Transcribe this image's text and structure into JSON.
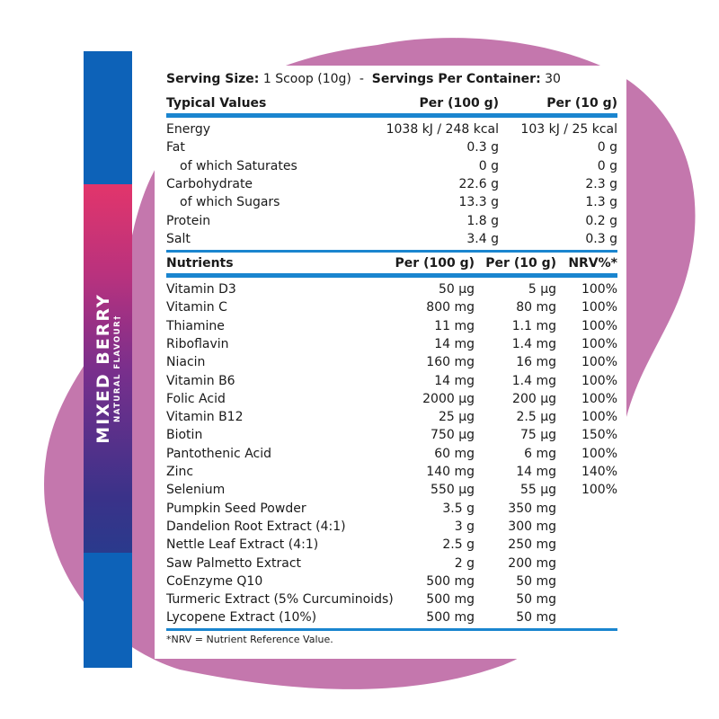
{
  "brand": {
    "flavour": "MIXED BERRY",
    "subtitle": "NATURAL FLAVOUR†"
  },
  "serving": {
    "size_label": "Serving Size:",
    "size_value": "1 Scoop (10g)",
    "sep": "-",
    "per_label": "Servings Per Container:",
    "per_value": "30"
  },
  "typical": {
    "headers": [
      "Typical Values",
      "Per (100 g)",
      "Per (10 g)"
    ],
    "rows": [
      [
        "Energy",
        "1038 kJ / 248 kcal",
        "103 kJ / 25 kcal"
      ],
      [
        "Fat",
        "0.3 g",
        "0 g"
      ],
      [
        "of which Saturates",
        "0 g",
        "0 g"
      ],
      [
        "Carbohydrate",
        "22.6 g",
        "2.3 g"
      ],
      [
        "of which Sugars",
        "13.3 g",
        "1.3 g"
      ],
      [
        "Protein",
        "1.8 g",
        "0.2 g"
      ],
      [
        "Salt",
        "3.4 g",
        "0.3 g"
      ]
    ]
  },
  "nutrients": {
    "headers": [
      "Nutrients",
      "Per (100 g)",
      "Per (10 g)",
      "NRV%*"
    ],
    "rows": [
      [
        "Vitamin D3",
        "50 µg",
        "5 µg",
        "100%"
      ],
      [
        "Vitamin C",
        "800 mg",
        "80 mg",
        "100%"
      ],
      [
        "Thiamine",
        "11 mg",
        "1.1 mg",
        "100%"
      ],
      [
        "Riboflavin",
        "14 mg",
        "1.4 mg",
        "100%"
      ],
      [
        "Niacin",
        "160 mg",
        "16 mg",
        "100%"
      ],
      [
        "Vitamin B6",
        "14 mg",
        "1.4 mg",
        "100%"
      ],
      [
        "Folic Acid",
        "2000 µg",
        "200 µg",
        "100%"
      ],
      [
        "Vitamin B12",
        "25 µg",
        "2.5 µg",
        "100%"
      ],
      [
        "Biotin",
        "750 µg",
        "75 µg",
        "150%"
      ],
      [
        "Pantothenic Acid",
        "60 mg",
        "6 mg",
        "100%"
      ],
      [
        "Zinc",
        "140 mg",
        "14 mg",
        "140%"
      ],
      [
        "Selenium",
        "550 µg",
        "55 µg",
        "100%"
      ],
      [
        "Pumpkin Seed Powder",
        "3.5 g",
        "350 mg",
        ""
      ],
      [
        "Dandelion Root Extract (4:1)",
        "3 g",
        "300 mg",
        ""
      ],
      [
        "Nettle Leaf Extract (4:1)",
        "2.5 g",
        "250 mg",
        ""
      ],
      [
        "Saw Palmetto Extract",
        "2 g",
        "200 mg",
        ""
      ],
      [
        "CoEnzyme Q10",
        "500 mg",
        "50 mg",
        ""
      ],
      [
        "Turmeric Extract (5% Curcuminoids)",
        "500 mg",
        "50 mg",
        ""
      ],
      [
        "Lycopene Extract (10%)",
        "500 mg",
        "50 mg",
        ""
      ]
    ]
  },
  "footnote": "*NRV = Nutrient Reference Value.",
  "colors": {
    "blob": "#c477ad",
    "accent": "#1a85cf",
    "strip": "#0d62b8"
  }
}
